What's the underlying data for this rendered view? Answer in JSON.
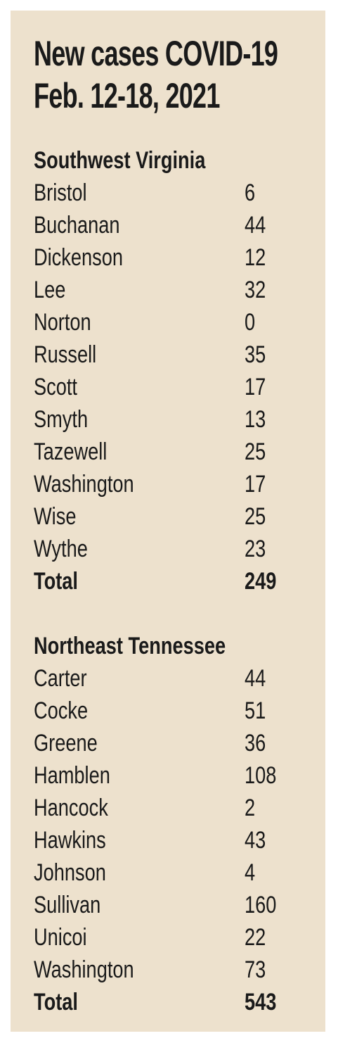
{
  "title": [
    "New cases COVID-19",
    "Feb. 12-18, 2021"
  ],
  "sections": [
    {
      "heading": "Southwest Virginia",
      "rows": [
        [
          "Bristol",
          6
        ],
        [
          "Buchanan",
          44
        ],
        [
          "Dickenson",
          12
        ],
        [
          "Lee",
          32
        ],
        [
          "Norton",
          0
        ],
        [
          "Russell",
          35
        ],
        [
          "Scott",
          17
        ],
        [
          "Smyth",
          13
        ],
        [
          "Tazewell",
          25
        ],
        [
          "Washington",
          17
        ],
        [
          "Wise",
          25
        ],
        [
          "Wythe",
          23
        ]
      ],
      "total": [
        "Total",
        249
      ]
    },
    {
      "heading": "Northeast Tennessee",
      "rows": [
        [
          "Carter",
          44
        ],
        [
          "Cocke",
          51
        ],
        [
          "Greene",
          36
        ],
        [
          "Hamblen",
          108
        ],
        [
          "Hancock",
          2
        ],
        [
          "Hawkins",
          43
        ],
        [
          "Johnson",
          4
        ],
        [
          "Sullivan",
          160
        ],
        [
          "Unicoi",
          22
        ],
        [
          "Washington",
          73
        ]
      ],
      "total": [
        "Total",
        543
      ]
    }
  ]
}
